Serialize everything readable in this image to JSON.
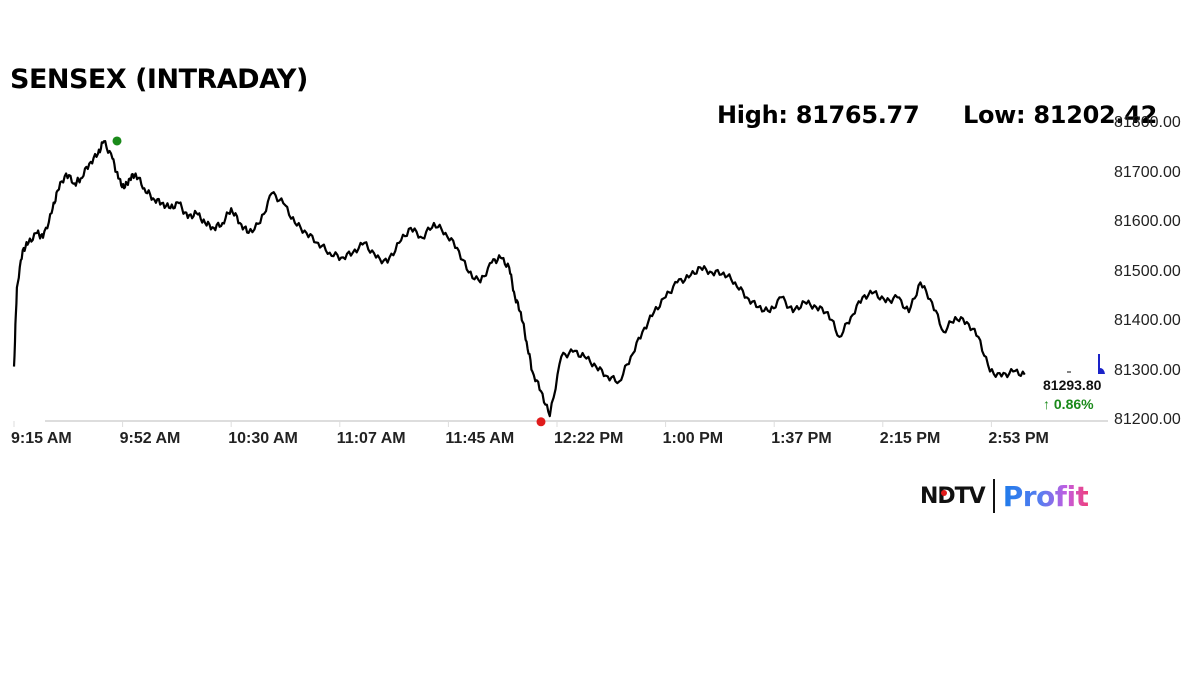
{
  "header": {
    "title": "SENSEX (INTRADAY)",
    "high_label": "High: 81765.77",
    "low_label": "Low: 81202.42"
  },
  "last": {
    "value": "81293.80",
    "change": "↑ 0.86%",
    "change_color": "#1a8a1a"
  },
  "colors": {
    "line": "#000000",
    "high_marker": "#1a8a1a",
    "low_marker": "#e01b1b",
    "current_marker": "#1a22c8",
    "grid": "#dddddd"
  },
  "logo": {
    "brand": "NDTV",
    "product": "Profit"
  },
  "chart_data": {
    "type": "line",
    "title": "SENSEX (INTRADAY)",
    "xlabel": "",
    "ylabel": "",
    "ylim": [
      81200,
      81800
    ],
    "y_ticks": [
      "81800.00",
      "81700.00",
      "81600.00",
      "81500.00",
      "81400.00",
      "81300.00",
      "81200.00"
    ],
    "x_ticks": [
      "9:15 AM",
      "9:52 AM",
      "10:30 AM",
      "11:07 AM",
      "11:45 AM",
      "12:22 PM",
      "1:00 PM",
      "1:37 PM",
      "2:15 PM",
      "2:53 PM"
    ],
    "grid": false,
    "legend": null,
    "annotations": {
      "high": 81765.77,
      "low": 81202.42,
      "last": 81293.8,
      "change_pct": 0.86
    },
    "series": [
      {
        "name": "SENSEX",
        "x": [
          "9:15",
          "9:16",
          "9:18",
          "9:20",
          "9:23",
          "9:25",
          "9:28",
          "9:30",
          "9:33",
          "9:36",
          "9:38",
          "9:41",
          "9:44",
          "9:46",
          "9:49",
          "9:51",
          "9:53",
          "9:55",
          "9:57",
          "10:00",
          "10:03",
          "10:06",
          "10:09",
          "10:12",
          "10:15",
          "10:18",
          "10:21",
          "10:24",
          "10:27",
          "10:30",
          "10:33",
          "10:36",
          "10:40",
          "10:44",
          "10:48",
          "10:52",
          "10:56",
          "11:00",
          "11:04",
          "11:08",
          "11:12",
          "11:16",
          "11:20",
          "11:24",
          "11:28",
          "11:32",
          "11:36",
          "11:40",
          "11:44",
          "11:48",
          "11:52",
          "11:56",
          "12:00",
          "12:03",
          "12:06",
          "12:08",
          "12:10",
          "12:12",
          "12:14",
          "12:17",
          "12:20",
          "12:24",
          "12:28",
          "12:32",
          "12:36",
          "12:40",
          "12:44",
          "12:48",
          "12:52",
          "12:56",
          "1:00",
          "1:04",
          "1:08",
          "1:12",
          "1:16",
          "1:20",
          "1:24",
          "1:28",
          "1:32",
          "1:36",
          "1:40",
          "1:44",
          "1:48",
          "1:52",
          "1:56",
          "2:00",
          "2:04",
          "2:08",
          "2:12",
          "2:16",
          "2:20",
          "2:24",
          "2:28",
          "2:32",
          "2:36",
          "2:40",
          "2:44",
          "2:48",
          "2:52",
          "2:56",
          "3:00",
          "3:04"
        ],
        "values": [
          81310,
          81470,
          81545,
          81560,
          81580,
          81570,
          81620,
          81665,
          81700,
          81680,
          81690,
          81720,
          81740,
          81765,
          81730,
          81690,
          81670,
          81690,
          81700,
          81670,
          81650,
          81640,
          81630,
          81640,
          81610,
          81620,
          81600,
          81590,
          81600,
          81630,
          81600,
          81580,
          81600,
          81660,
          81640,
          81600,
          81580,
          81560,
          81540,
          81530,
          81540,
          81560,
          81530,
          81520,
          81560,
          81590,
          81570,
          81600,
          81580,
          81550,
          81500,
          81480,
          81520,
          81530,
          81510,
          81450,
          81420,
          81360,
          81300,
          81260,
          81210,
          81330,
          81340,
          81330,
          81310,
          81290,
          81280,
          81330,
          81380,
          81420,
          81450,
          81480,
          81490,
          81510,
          81500,
          81500,
          81480,
          81450,
          81430,
          81420,
          81450,
          81420,
          81440,
          81430,
          81420,
          81370,
          81410,
          81450,
          81460,
          81440,
          81450,
          81420,
          81480,
          81440,
          81380,
          81410,
          81400,
          81370,
          81300,
          81290,
          81300,
          81293.8
        ]
      }
    ]
  }
}
